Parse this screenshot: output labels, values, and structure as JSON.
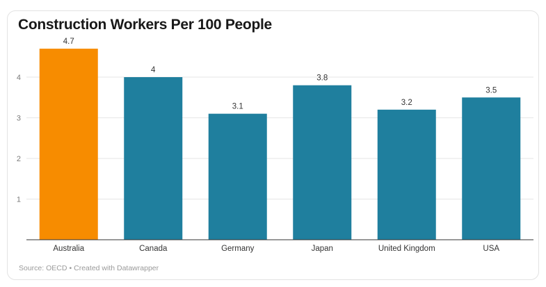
{
  "chart_data": {
    "type": "bar",
    "title": "Construction Workers Per 100 People",
    "categories": [
      "Australia",
      "Canada",
      "Germany",
      "Japan",
      "United Kingdom",
      "USA"
    ],
    "values": [
      4.7,
      4,
      3.1,
      3.8,
      3.2,
      3.5
    ],
    "value_labels": [
      "4.7",
      "4",
      "3.1",
      "3.8",
      "3.2",
      "3.5"
    ],
    "y_ticks": [
      1,
      2,
      3,
      4
    ],
    "ylim": [
      0,
      5
    ],
    "grid": true,
    "colors": {
      "highlight": "#f78c00",
      "default": "#1f7f9e",
      "highlight_category": "Australia"
    }
  },
  "footer": {
    "source": "Source: OECD",
    "separator": "•",
    "credit": "Created with Datawrapper"
  }
}
